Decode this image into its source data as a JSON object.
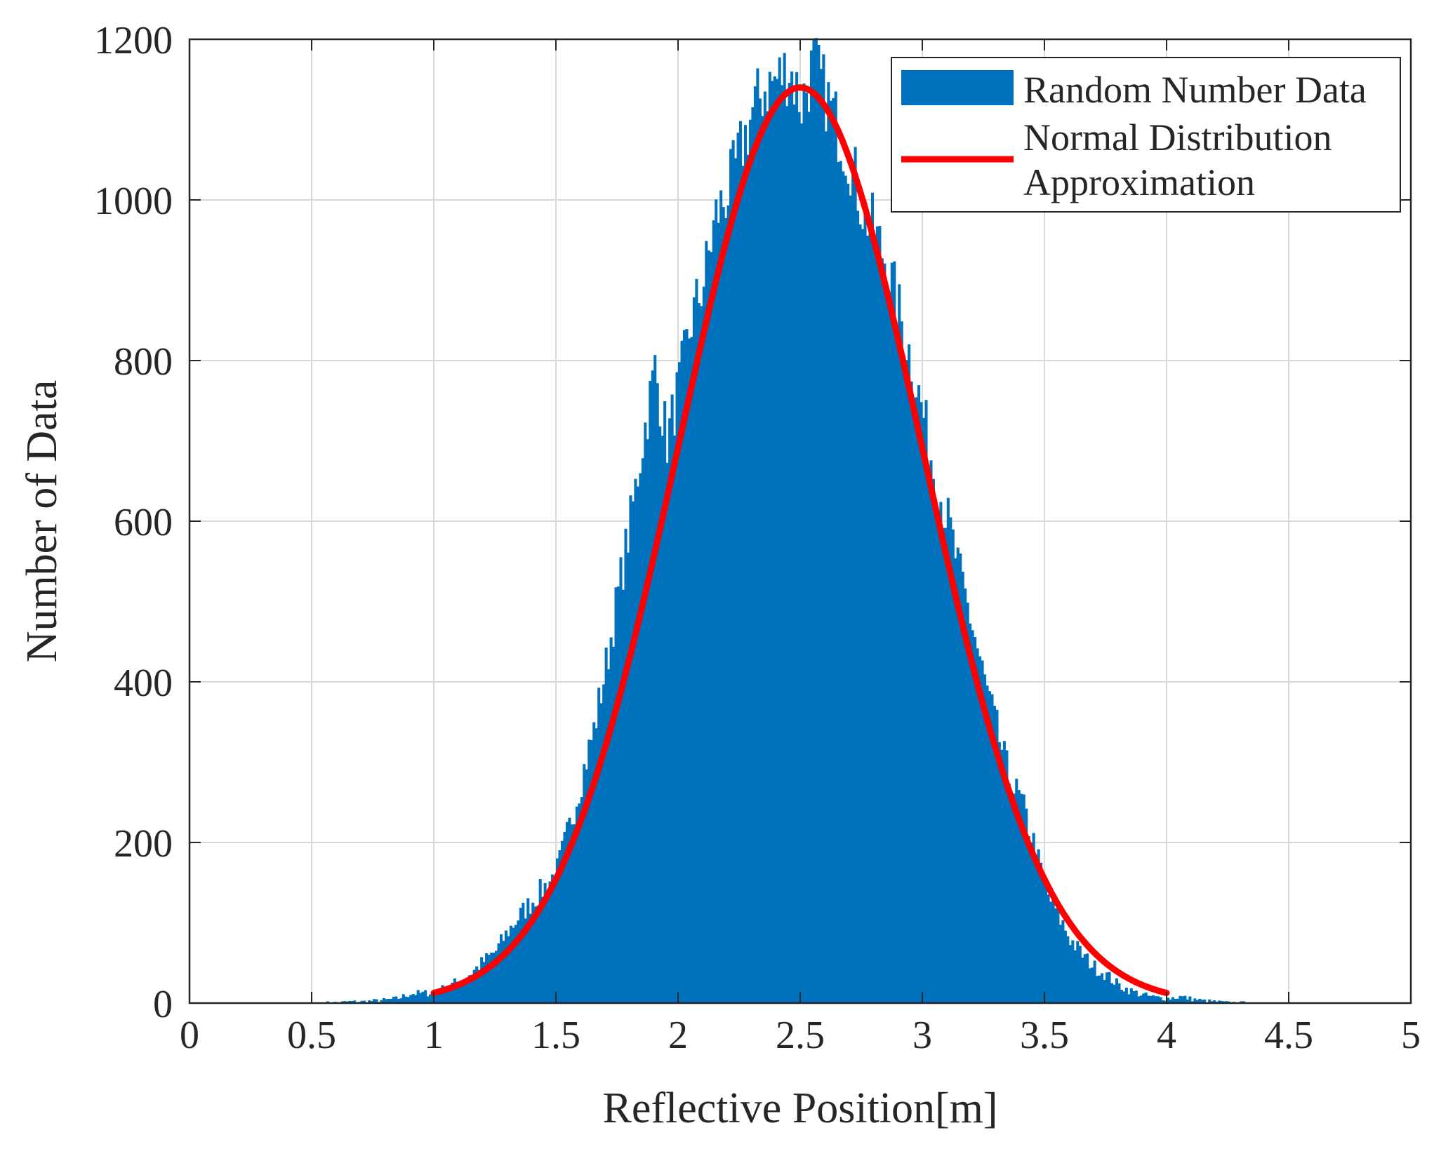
{
  "chart_data": {
    "type": "bar",
    "title": "",
    "xlabel": "Reflective Position[m]",
    "ylabel": "Number of Data",
    "xlim": [
      0,
      5
    ],
    "ylim": [
      0,
      1200
    ],
    "x_ticks": [
      "0",
      "0.5",
      "1",
      "1.5",
      "2",
      "2.5",
      "3",
      "3.5",
      "4",
      "4.5",
      "5"
    ],
    "y_ticks": [
      "0",
      "200",
      "400",
      "600",
      "800",
      "1000",
      "1200"
    ],
    "grid": true,
    "legend_position": "top-right",
    "colors": {
      "bars": "#0072BD",
      "curve": "#FF0000",
      "grid": "#D9D9D9"
    },
    "series": [
      {
        "name": "Random Number Data",
        "type": "histogram",
        "bin_width": 0.01,
        "x": [
          0.55,
          0.6,
          0.65,
          0.7,
          0.75,
          0.8,
          0.85,
          0.9,
          0.95,
          1.0,
          1.05,
          1.1,
          1.15,
          1.2,
          1.25,
          1.3,
          1.35,
          1.4,
          1.45,
          1.5,
          1.55,
          1.6,
          1.65,
          1.7,
          1.75,
          1.8,
          1.85,
          1.9,
          1.95,
          2.0,
          2.05,
          2.1,
          2.15,
          2.2,
          2.25,
          2.3,
          2.35,
          2.4,
          2.45,
          2.5,
          2.55,
          2.6,
          2.65,
          2.7,
          2.75,
          2.8,
          2.85,
          2.9,
          2.95,
          3.0,
          3.05,
          3.1,
          3.15,
          3.2,
          3.25,
          3.3,
          3.35,
          3.4,
          3.45,
          3.5,
          3.55,
          3.6,
          3.65,
          3.7,
          3.75,
          3.8,
          3.85,
          3.9,
          3.95,
          4.0,
          4.05,
          4.1,
          4.15,
          4.2,
          4.25,
          4.3
        ],
        "values": [
          1,
          1,
          2,
          2,
          3,
          4,
          6,
          12,
          12,
          14,
          20,
          28,
          38,
          52,
          65,
          90,
          110,
          128,
          145,
          165,
          220,
          280,
          340,
          420,
          510,
          600,
          700,
          790,
          700,
          770,
          850,
          900,
          980,
          1010,
          1060,
          1110,
          1140,
          1150,
          1165,
          1120,
          1170,
          1130,
          1090,
          1050,
          990,
          960,
          920,
          860,
          800,
          730,
          650,
          600,
          530,
          470,
          400,
          340,
          280,
          250,
          200,
          140,
          110,
          80,
          60,
          45,
          35,
          22,
          15,
          10,
          7,
          6,
          8,
          5,
          3,
          2,
          1,
          1
        ]
      },
      {
        "name": "Normal Distribution Approximation",
        "type": "line",
        "mean": 2.5,
        "std": 0.5,
        "peak": 1140,
        "x_range": [
          1,
          4
        ]
      }
    ]
  }
}
